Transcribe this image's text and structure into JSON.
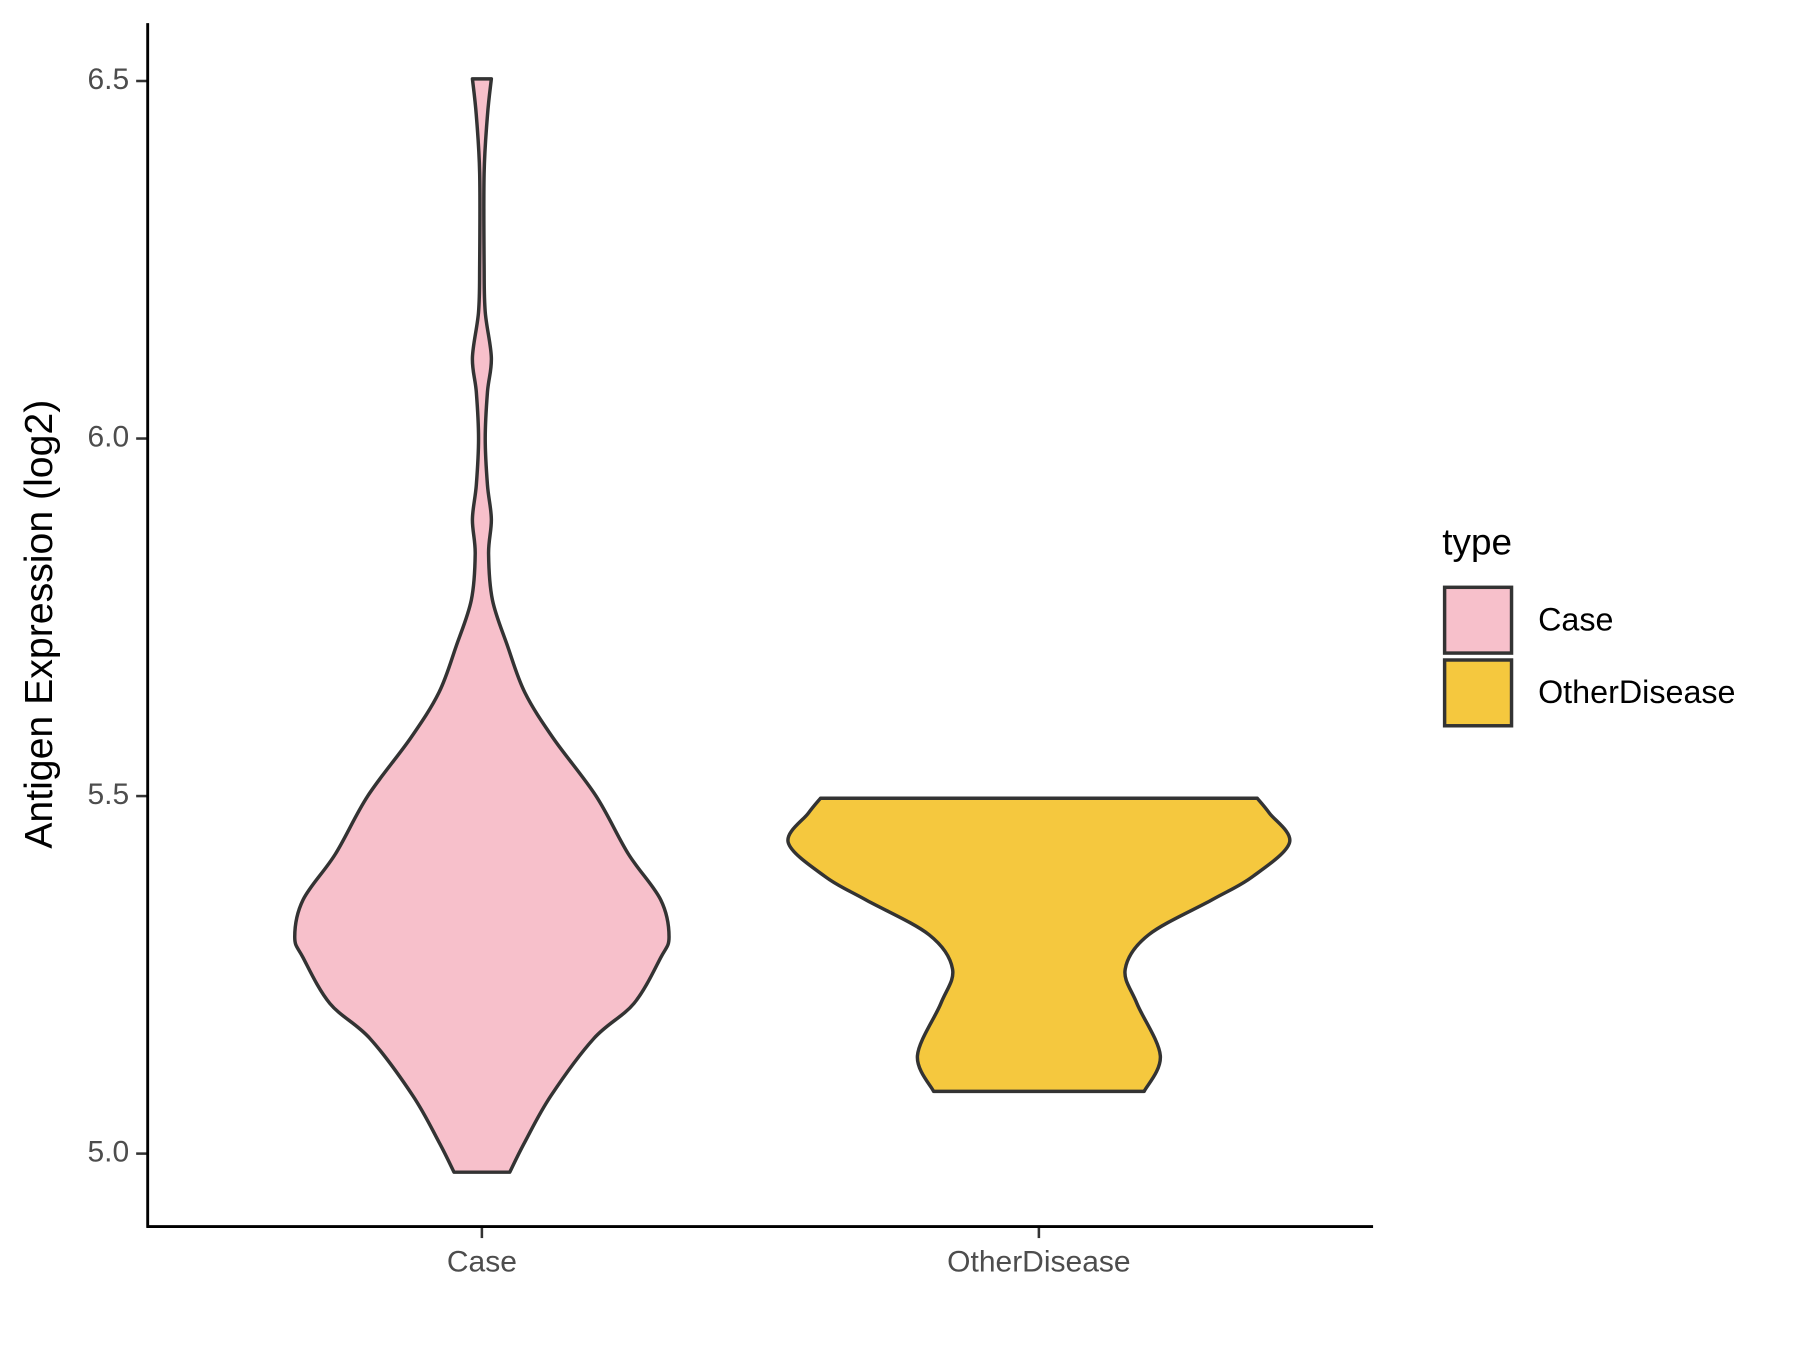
{
  "chart_data": {
    "type": "violin",
    "y_label": "Antigen Expression (log2)",
    "categories": [
      "Case",
      "OtherDisease"
    ],
    "legend_title": "type",
    "legend_position": "right",
    "ylim": [
      4.898,
      6.581
    ],
    "yticks": [
      {
        "value": 5,
        "label": "5.0"
      },
      5.5,
      {
        "value": 6,
        "label": "6.0"
      },
      6.5
    ],
    "grid": false,
    "series": [
      {
        "name": "Case",
        "color": "#f7c0cb",
        "y": [
          4.974,
          5.016,
          5.081,
          5.161,
          5.21,
          5.274,
          5.303,
          5.355,
          5.419,
          5.5,
          5.581,
          5.645,
          5.71,
          5.774,
          5.839,
          5.887,
          5.935,
          6.0,
          6.065,
          6.113,
          6.177,
          6.242,
          6.371,
          6.452,
          6.503
        ],
        "width": [
          0.05,
          0.077,
          0.124,
          0.201,
          0.273,
          0.321,
          0.336,
          0.321,
          0.263,
          0.205,
          0.128,
          0.077,
          0.046,
          0.019,
          0.012,
          0.017,
          0.01,
          0.006,
          0.01,
          0.017,
          0.006,
          0.004,
          0.004,
          0.01,
          0.017
        ]
      },
      {
        "name": "OtherDisease",
        "color": "#f5c83e",
        "y": [
          5.087,
          5.137,
          5.21,
          5.258,
          5.306,
          5.355,
          5.387,
          5.435,
          5.476,
          5.497
        ],
        "width": [
          0.189,
          0.218,
          0.176,
          0.155,
          0.197,
          0.311,
          0.383,
          0.45,
          0.414,
          0.392
        ]
      }
    ]
  }
}
